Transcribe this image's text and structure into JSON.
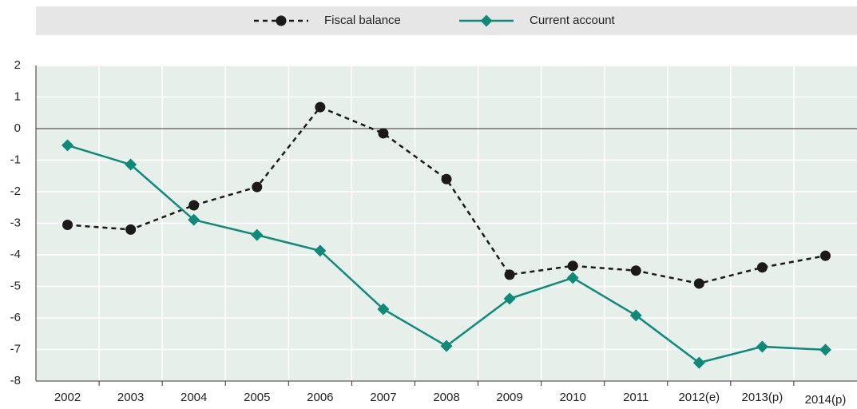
{
  "chart_data": {
    "type": "line",
    "categories": [
      "2002",
      "2003",
      "2004",
      "2005",
      "2006",
      "2007",
      "2008",
      "2009",
      "2010",
      "2011",
      "2012(e)",
      "2013(p)",
      "2014(p)"
    ],
    "series": [
      {
        "name": "Fiscal balance",
        "color": "#1a1a1a",
        "dash": true,
        "marker": "circle",
        "values": [
          -3.05,
          -3.2,
          -2.43,
          -1.85,
          0.68,
          -0.15,
          -1.6,
          -4.63,
          -4.35,
          -4.5,
          -4.91,
          -4.4,
          -4.03
        ]
      },
      {
        "name": "Current account",
        "color": "#0f8a78",
        "dash": false,
        "marker": "diamond",
        "values": [
          -0.53,
          -1.14,
          -2.89,
          -3.37,
          -3.87,
          -5.72,
          -6.89,
          -5.39,
          -4.73,
          -5.92,
          -7.42,
          -6.91,
          -7.01
        ]
      }
    ],
    "ylim": [
      -8,
      2
    ],
    "yticks": [
      -8,
      -7,
      -6,
      -5,
      -4,
      -3,
      -2,
      -1,
      0,
      1,
      2
    ],
    "grid": true,
    "legend": "top"
  }
}
